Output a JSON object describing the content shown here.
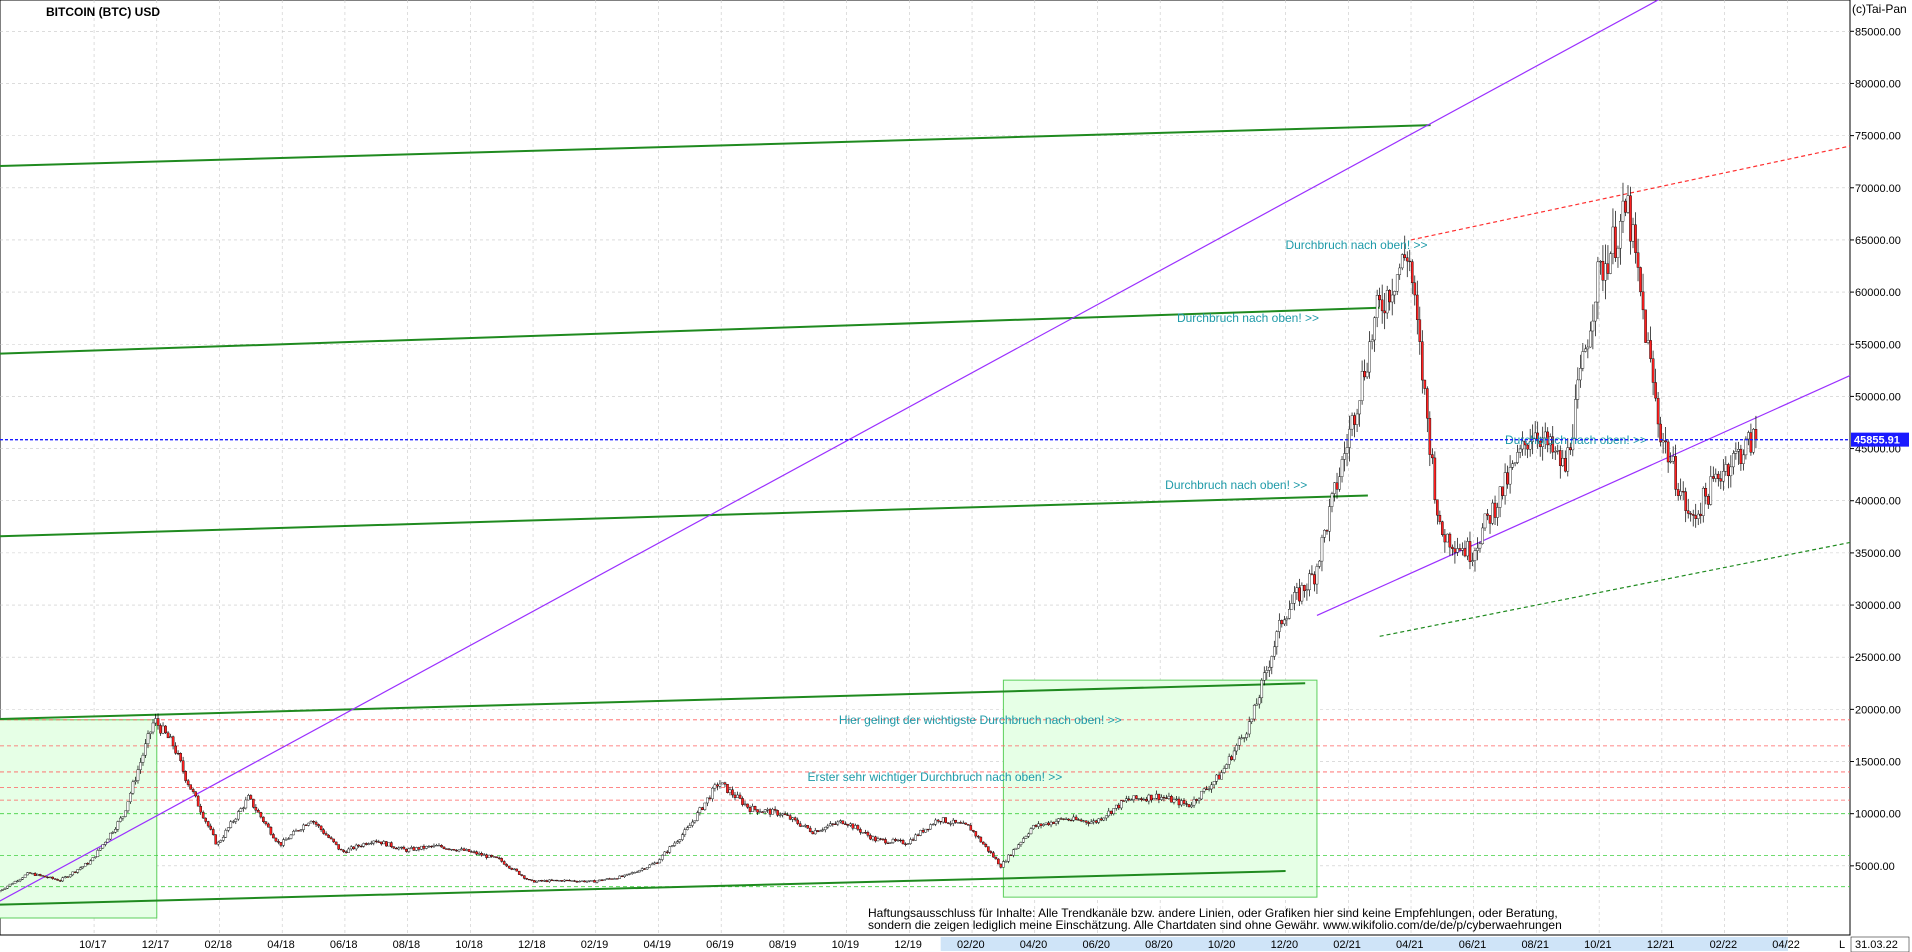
{
  "title": "BITCOIN (BTC) USD",
  "copyright": "(c)Tai-Pan",
  "disclaimer": {
    "line1": "Haftungsausschluss für Inhalte: Alle Trendkanäle bzw. andere Linien, oder Grafiken hier sind keine Empfehlungen, oder Beratung,",
    "line2": "sondern die zeigen lediglich meine  Einschätzung. Alle Chartdaten sind ohne Gewähr.  www.wikifolio.com/de/de/p/cyberwaehrungen"
  },
  "colors": {
    "trend_green": "#1f8a1f",
    "channel_purple": "#9b30ff",
    "resistance_red": "#ff3030",
    "zone_fill": "#e6ffe6",
    "annotation": "#1e9aa8",
    "price_line": "#1a1aff",
    "candle_up": "#ffffff",
    "candle_down": "#ff2020"
  },
  "chart_data": {
    "type": "candlestick",
    "title": "BITCOIN (BTC) USD",
    "ylim": [
      0,
      88000
    ],
    "x_start": "2017-07",
    "x_end": "2022-06",
    "y_ticks": [
      "5000.00",
      "10000.00",
      "15000.00",
      "20000.00",
      "25000.00",
      "30000.00",
      "35000.00",
      "40000.00",
      "45000.00",
      "50000.00",
      "55000.00",
      "60000.00",
      "65000.00",
      "70000.00",
      "75000.00",
      "80000.00",
      "85000.00"
    ],
    "x_ticks": [
      {
        "label": "10/17",
        "t": "2017-10"
      },
      {
        "label": "12/17",
        "t": "2017-12"
      },
      {
        "label": "02/18",
        "t": "2018-02"
      },
      {
        "label": "04/18",
        "t": "2018-04"
      },
      {
        "label": "06/18",
        "t": "2018-06"
      },
      {
        "label": "08/18",
        "t": "2018-08"
      },
      {
        "label": "10/18",
        "t": "2018-10"
      },
      {
        "label": "12/18",
        "t": "2018-12"
      },
      {
        "label": "02/19",
        "t": "2019-02"
      },
      {
        "label": "04/19",
        "t": "2019-04"
      },
      {
        "label": "06/19",
        "t": "2019-06"
      },
      {
        "label": "08/19",
        "t": "2019-08"
      },
      {
        "label": "10/19",
        "t": "2019-10"
      },
      {
        "label": "12/19",
        "t": "2019-12"
      },
      {
        "label": "02/20",
        "t": "2020-02"
      },
      {
        "label": "04/20",
        "t": "2020-04"
      },
      {
        "label": "06/20",
        "t": "2020-06"
      },
      {
        "label": "08/20",
        "t": "2020-08"
      },
      {
        "label": "10/20",
        "t": "2020-10"
      },
      {
        "label": "12/20",
        "t": "2020-12"
      },
      {
        "label": "02/21",
        "t": "2021-02"
      },
      {
        "label": "04/21",
        "t": "2021-04"
      },
      {
        "label": "06/21",
        "t": "2021-06"
      },
      {
        "label": "08/21",
        "t": "2021-08"
      },
      {
        "label": "10/21",
        "t": "2021-10"
      },
      {
        "label": "12/21",
        "t": "2021-12"
      },
      {
        "label": "02/22",
        "t": "2022-02"
      },
      {
        "label": "04/22",
        "t": "2022-04"
      }
    ],
    "last_date_label": "31.03.22",
    "last_price": 45855.91,
    "last_price_label": "45855.91",
    "series": [
      {
        "values": [
          [
            "2017-07",
            2500
          ],
          [
            "2017-08",
            4300
          ],
          [
            "2017-09",
            3600
          ],
          [
            "2017-10",
            5500
          ],
          [
            "2017-11",
            9800
          ],
          [
            "2017-12",
            19000
          ],
          [
            "2017-12-20",
            16500
          ],
          [
            "2018-01",
            13500
          ],
          [
            "2018-02",
            7000
          ],
          [
            "2018-03",
            11500
          ],
          [
            "2018-04",
            7000
          ],
          [
            "2018-05",
            9500
          ],
          [
            "2018-06",
            6300
          ],
          [
            "2018-07",
            7500
          ],
          [
            "2018-08",
            6500
          ],
          [
            "2018-09",
            6900
          ],
          [
            "2018-10",
            6400
          ],
          [
            "2018-11",
            5600
          ],
          [
            "2018-12",
            3500
          ],
          [
            "2019-01",
            3600
          ],
          [
            "2019-02",
            3500
          ],
          [
            "2019-03",
            4000
          ],
          [
            "2019-04",
            5300
          ],
          [
            "2019-05",
            8500
          ],
          [
            "2019-06",
            13000
          ],
          [
            "2019-07",
            10500
          ],
          [
            "2019-08",
            10000
          ],
          [
            "2019-09",
            8300
          ],
          [
            "2019-10",
            9300
          ],
          [
            "2019-11",
            7500
          ],
          [
            "2019-12",
            7200
          ],
          [
            "2020-01",
            9500
          ],
          [
            "2020-02",
            8700
          ],
          [
            "2020-03",
            5000
          ],
          [
            "2020-04",
            8700
          ],
          [
            "2020-05",
            9500
          ],
          [
            "2020-06",
            9200
          ],
          [
            "2020-07",
            11300
          ],
          [
            "2020-08",
            11700
          ],
          [
            "2020-09",
            10800
          ],
          [
            "2020-10",
            13700
          ],
          [
            "2020-11",
            19000
          ],
          [
            "2020-12",
            29000
          ],
          [
            "2021-01",
            33000
          ],
          [
            "2021-02",
            45000
          ],
          [
            "2021-03",
            58000
          ],
          [
            "2021-04",
            64000
          ],
          [
            "2021-05",
            37000
          ],
          [
            "2021-06",
            35000
          ],
          [
            "2021-07",
            41000
          ],
          [
            "2021-08",
            47000
          ],
          [
            "2021-09",
            43000
          ],
          [
            "2021-10",
            61000
          ],
          [
            "2021-11",
            68000
          ],
          [
            "2021-12",
            47000
          ],
          [
            "2022-01",
            38000
          ],
          [
            "2022-02",
            43000
          ],
          [
            "2022-03",
            45855
          ]
        ]
      }
    ],
    "annotations": [
      {
        "text": "Durchbruch nach oben! >>",
        "x": "2021-04-15",
        "y": 64500
      },
      {
        "text": "Durchbruch nach oben! >>",
        "x": "2021-01",
        "y": 57500
      },
      {
        "text": "Durchbruch nach oben! >>",
        "x": "2020-12-20",
        "y": 41500
      },
      {
        "text": "Durchbruch nach oben! >>",
        "x": "2021-11-15",
        "y": 45800
      },
      {
        "text": "Hier gelingt der wichtigste Durchbruch nach oben! >>",
        "x": "2020-07",
        "y": 19000
      },
      {
        "text": "Erster sehr wichtiger Durchbruch nach oben! >>",
        "x": "2020-06",
        "y": 13500
      }
    ],
    "trendlines": [
      {
        "color": "green",
        "from": [
          "2017-06",
          72000
        ],
        "to": [
          "2021-04-20",
          76000
        ]
      },
      {
        "color": "green",
        "from": [
          "2017-06",
          54000
        ],
        "to": [
          "2021-03",
          58500
        ]
      },
      {
        "color": "green",
        "from": [
          "2017-06",
          36500
        ],
        "to": [
          "2021-02-20",
          40500
        ]
      },
      {
        "color": "green",
        "from": [
          "2017-06",
          19000
        ],
        "to": [
          "2020-12-20",
          22500
        ]
      },
      {
        "color": "green",
        "from": [
          "2017-06",
          1200
        ],
        "to": [
          "2020-12",
          4500
        ]
      },
      {
        "color": "purple",
        "from": [
          "2017-06",
          0
        ],
        "to": [
          "2022-06",
          98000
        ]
      },
      {
        "color": "purple",
        "from": [
          "2021-01",
          29000
        ],
        "to": [
          "2022-06",
          52000
        ]
      },
      {
        "color": "red",
        "from": [
          "2021-04",
          65000
        ],
        "to": [
          "2022-06",
          74000
        ]
      },
      {
        "color": "green",
        "from": [
          "2021-03",
          27000
        ],
        "to": [
          "2022-06",
          36000
        ]
      }
    ],
    "zones": [
      {
        "from": [
          "2017-06",
          0
        ],
        "to": [
          "2017-12",
          19000
        ]
      },
      {
        "from": [
          "2020-03",
          2000
        ],
        "to": [
          "2021-01",
          22800
        ]
      }
    ]
  }
}
